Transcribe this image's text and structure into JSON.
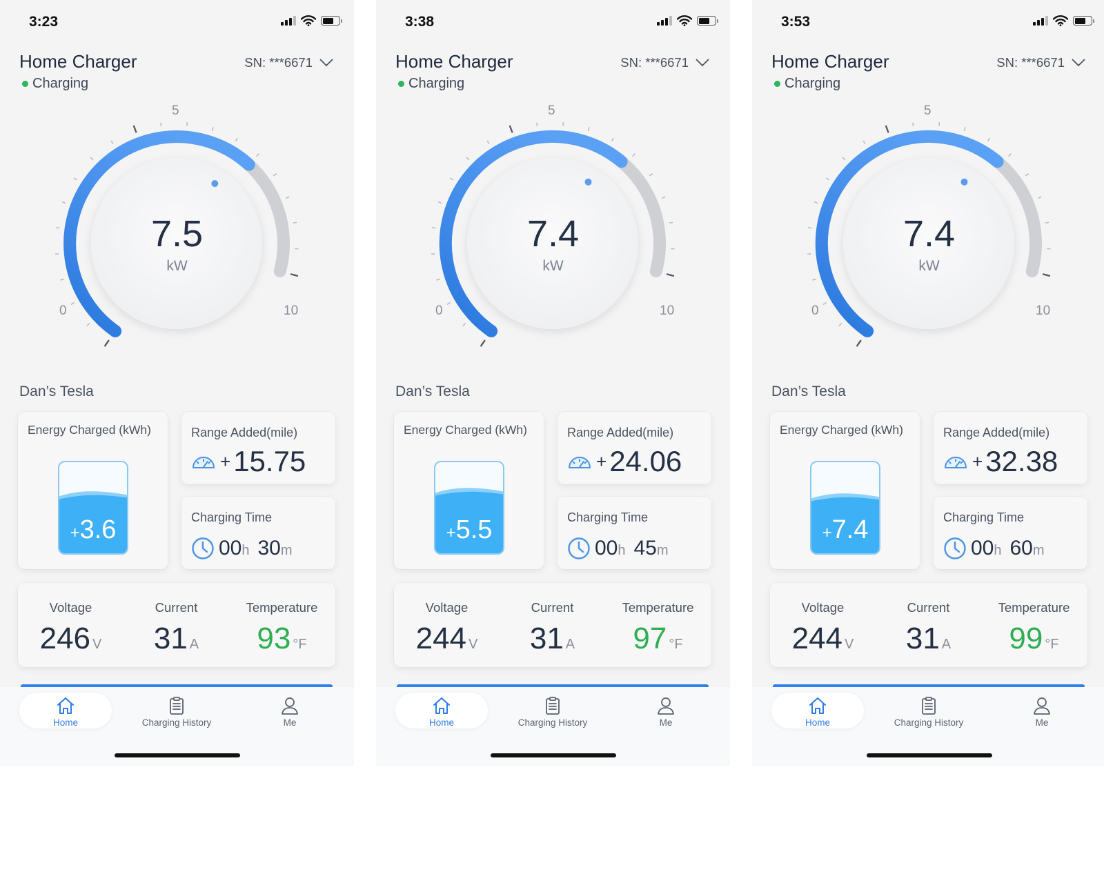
{
  "colors": {
    "accent_blue": "#2f80e8",
    "gauge_track": "#cfd0d3",
    "status_green": "#2db55d",
    "temperature_green": "#2fae53",
    "tank_blue": "#3eb1f6"
  },
  "gauge_scale": {
    "min": 0,
    "mid": 5,
    "max": 10,
    "min_label": "0",
    "mid_label": "5",
    "max_label": "10"
  },
  "screens": [
    {
      "status_bar": {
        "time": "3:23"
      },
      "header": {
        "title": "Home Charger",
        "serial": "SN: ***6671",
        "status": "Charging"
      },
      "gauge": {
        "value": "7.5",
        "value_num": 7.5,
        "unit": "kW"
      },
      "vehicle": {
        "name": "Dan’s Tesla"
      },
      "energy": {
        "label": "Energy Charged (kWh)",
        "plus": "+",
        "value": "3.6",
        "fill_fraction": 0.62
      },
      "range": {
        "label": "Range Added(mile)",
        "plus": "+",
        "value": "15.75"
      },
      "charging_time": {
        "label": "Charging Time",
        "hours": "00",
        "h_unit": "h",
        "minutes": "30",
        "m_unit": "m"
      },
      "metrics": {
        "voltage": {
          "label": "Voltage",
          "value": "246",
          "unit": "V"
        },
        "current": {
          "label": "Current",
          "value": "31",
          "unit": "A"
        },
        "temperature": {
          "label": "Temperature",
          "value": "93",
          "unit": "°F"
        }
      },
      "nav": {
        "home": "Home",
        "history": "Charging History",
        "me": "Me"
      }
    },
    {
      "status_bar": {
        "time": "3:38"
      },
      "header": {
        "title": "Home Charger",
        "serial": "SN: ***6671",
        "status": "Charging"
      },
      "gauge": {
        "value": "7.4",
        "value_num": 7.4,
        "unit": "kW"
      },
      "vehicle": {
        "name": "Dan’s Tesla"
      },
      "energy": {
        "label": "Energy Charged (kWh)",
        "plus": "+",
        "value": "5.5",
        "fill_fraction": 0.66
      },
      "range": {
        "label": "Range Added(mile)",
        "plus": "+",
        "value": "24.06"
      },
      "charging_time": {
        "label": "Charging Time",
        "hours": "00",
        "h_unit": "h",
        "minutes": "45",
        "m_unit": "m"
      },
      "metrics": {
        "voltage": {
          "label": "Voltage",
          "value": "244",
          "unit": "V"
        },
        "current": {
          "label": "Current",
          "value": "31",
          "unit": "A"
        },
        "temperature": {
          "label": "Temperature",
          "value": "97",
          "unit": "°F"
        }
      },
      "nav": {
        "home": "Home",
        "history": "Charging History",
        "me": "Me"
      }
    },
    {
      "status_bar": {
        "time": "3:53"
      },
      "header": {
        "title": "Home Charger",
        "serial": "SN: ***6671",
        "status": "Charging"
      },
      "gauge": {
        "value": "7.4",
        "value_num": 7.4,
        "unit": "kW"
      },
      "vehicle": {
        "name": "Dan’s Tesla"
      },
      "energy": {
        "label": "Energy Charged (kWh)",
        "plus": "+",
        "value": "7.4",
        "fill_fraction": 0.6
      },
      "range": {
        "label": "Range Added(mile)",
        "plus": "+",
        "value": "32.38"
      },
      "charging_time": {
        "label": "Charging Time",
        "hours": "00",
        "h_unit": "h",
        "minutes": "60",
        "m_unit": "m"
      },
      "metrics": {
        "voltage": {
          "label": "Voltage",
          "value": "244",
          "unit": "V"
        },
        "current": {
          "label": "Current",
          "value": "31",
          "unit": "A"
        },
        "temperature": {
          "label": "Temperature",
          "value": "99",
          "unit": "°F"
        }
      },
      "nav": {
        "home": "Home",
        "history": "Charging History",
        "me": "Me"
      }
    }
  ]
}
